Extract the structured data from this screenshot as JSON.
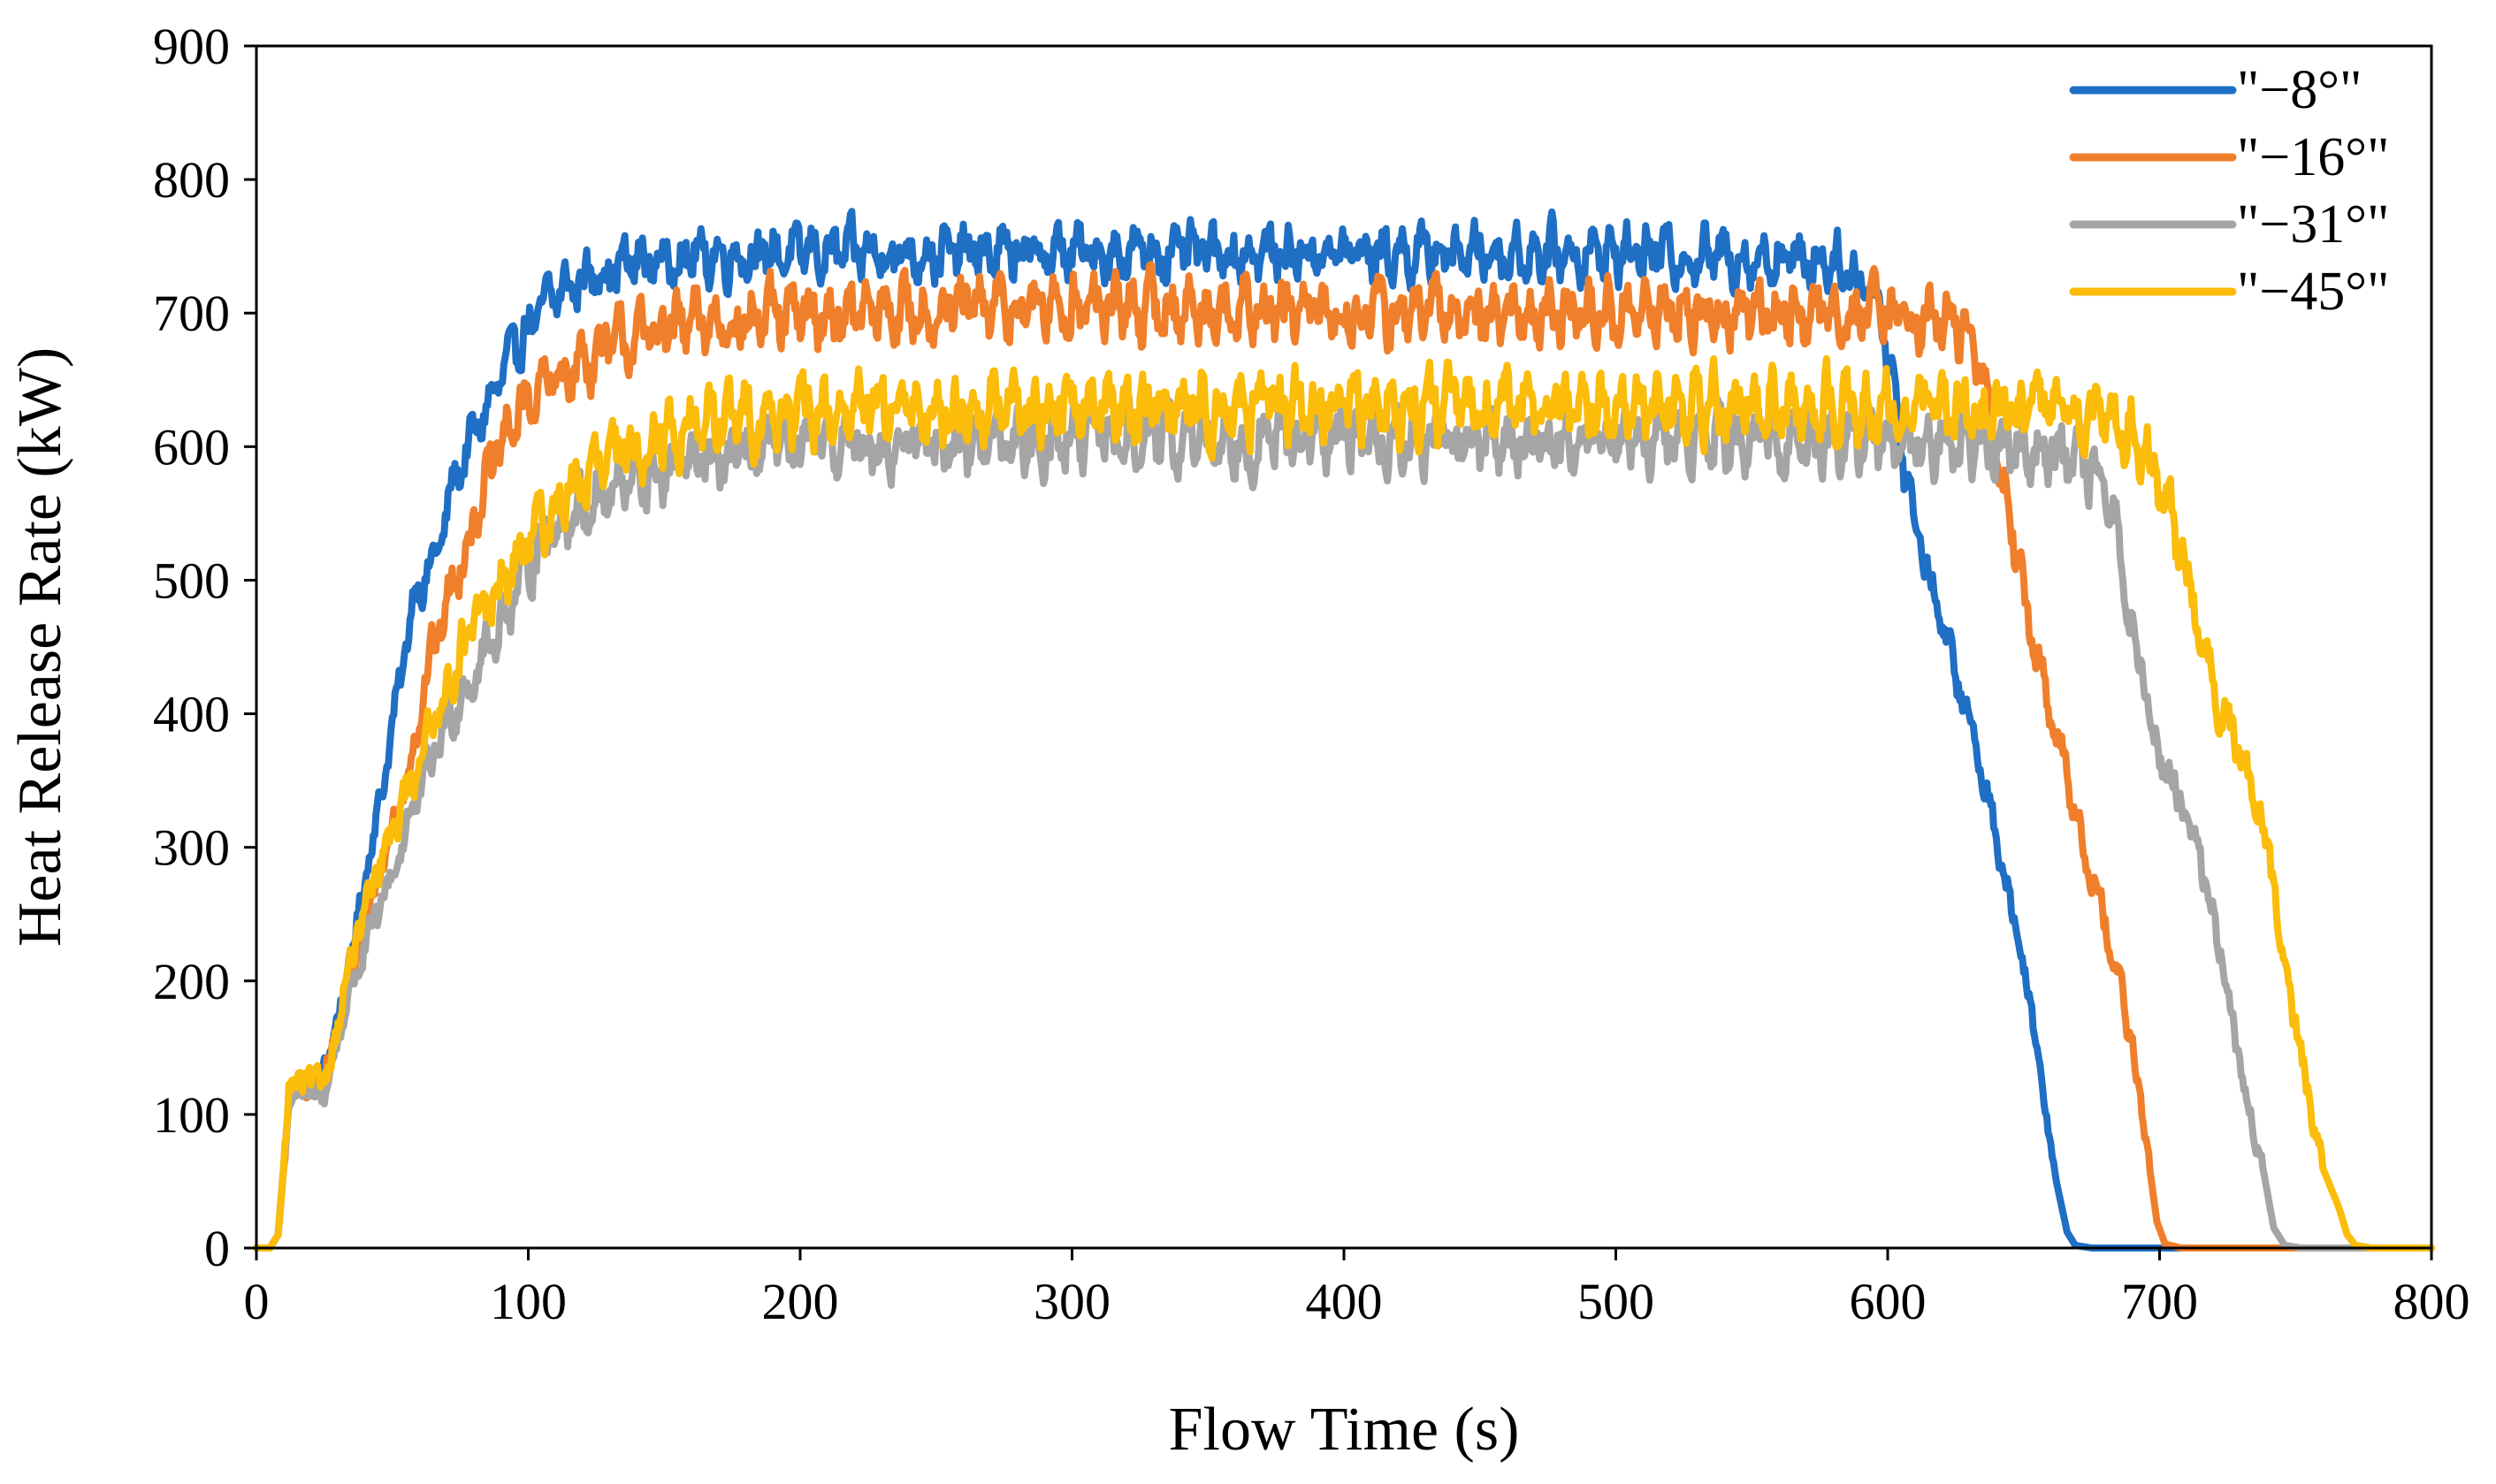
{
  "chart_data": {
    "type": "line",
    "title": "",
    "xlabel": "Flow Time (s)",
    "ylabel": "Heat Release Rate (kW)",
    "xlim": [
      0,
      800
    ],
    "ylim": [
      0,
      900
    ],
    "xticks": [
      0,
      100,
      200,
      300,
      400,
      500,
      600,
      700,
      800
    ],
    "yticks": [
      0,
      100,
      200,
      300,
      400,
      500,
      600,
      700,
      800,
      900
    ],
    "grid": false,
    "legend_position": "top-right",
    "series": [
      {
        "name": "\"−8°\"",
        "color": "#1F6FC5",
        "plateau": 745,
        "noise_amp": 24,
        "points": [
          [
            0,
            0
          ],
          [
            5,
            0
          ],
          [
            8,
            10
          ],
          [
            10,
            60
          ],
          [
            12,
            110
          ],
          [
            15,
            125
          ],
          [
            20,
            120
          ],
          [
            24,
            130
          ],
          [
            28,
            155
          ],
          [
            32,
            190
          ],
          [
            36,
            230
          ],
          [
            40,
            280
          ],
          [
            45,
            330
          ],
          [
            50,
            390
          ],
          [
            55,
            450
          ],
          [
            58,
            490
          ],
          [
            63,
            505
          ],
          [
            68,
            530
          ],
          [
            72,
            570
          ],
          [
            78,
            600
          ],
          [
            85,
            630
          ],
          [
            92,
            660
          ],
          [
            100,
            690
          ],
          [
            108,
            710
          ],
          [
            115,
            720
          ],
          [
            125,
            730
          ],
          [
            140,
            738
          ],
          [
            160,
            742
          ],
          [
            200,
            745
          ],
          [
            300,
            745
          ],
          [
            400,
            745
          ],
          [
            500,
            745
          ],
          [
            580,
            740
          ],
          [
            596,
            715
          ],
          [
            603,
            640
          ],
          [
            606,
            585
          ],
          [
            610,
            545
          ],
          [
            616,
            500
          ],
          [
            622,
            450
          ],
          [
            628,
            410
          ],
          [
            634,
            360
          ],
          [
            640,
            310
          ],
          [
            646,
            250
          ],
          [
            652,
            190
          ],
          [
            657,
            120
          ],
          [
            662,
            50
          ],
          [
            666,
            12
          ],
          [
            669,
            2
          ],
          [
            675,
            0
          ],
          [
            800,
            0
          ]
        ]
      },
      {
        "name": "\"−16°\"",
        "color": "#F07F2B",
        "plateau": 700,
        "noise_amp": 28,
        "points": [
          [
            0,
            0
          ],
          [
            5,
            0
          ],
          [
            8,
            10
          ],
          [
            10,
            60
          ],
          [
            12,
            110
          ],
          [
            15,
            122
          ],
          [
            20,
            118
          ],
          [
            24,
            128
          ],
          [
            30,
            160
          ],
          [
            36,
            210
          ],
          [
            42,
            260
          ],
          [
            48,
            300
          ],
          [
            54,
            340
          ],
          [
            60,
            400
          ],
          [
            65,
            450
          ],
          [
            70,
            480
          ],
          [
            76,
            520
          ],
          [
            82,
            560
          ],
          [
            88,
            590
          ],
          [
            95,
            620
          ],
          [
            102,
            640
          ],
          [
            110,
            650
          ],
          [
            120,
            665
          ],
          [
            135,
            680
          ],
          [
            155,
            690
          ],
          [
            180,
            695
          ],
          [
            220,
            700
          ],
          [
            300,
            705
          ],
          [
            400,
            700
          ],
          [
            500,
            700
          ],
          [
            600,
            700
          ],
          [
            628,
            690
          ],
          [
            636,
            640
          ],
          [
            642,
            580
          ],
          [
            648,
            510
          ],
          [
            654,
            450
          ],
          [
            660,
            400
          ],
          [
            666,
            350
          ],
          [
            672,
            300
          ],
          [
            678,
            260
          ],
          [
            684,
            210
          ],
          [
            690,
            150
          ],
          [
            695,
            80
          ],
          [
            699,
            20
          ],
          [
            702,
            3
          ],
          [
            708,
            0
          ],
          [
            800,
            0
          ]
        ]
      },
      {
        "name": "\"−31°\"",
        "color": "#A5A5A5",
        "plateau": 605,
        "noise_amp": 28,
        "points": [
          [
            0,
            0
          ],
          [
            5,
            0
          ],
          [
            8,
            10
          ],
          [
            10,
            60
          ],
          [
            12,
            110
          ],
          [
            15,
            118
          ],
          [
            20,
            112
          ],
          [
            26,
            120
          ],
          [
            32,
            175
          ],
          [
            38,
            215
          ],
          [
            44,
            245
          ],
          [
            50,
            280
          ],
          [
            56,
            320
          ],
          [
            62,
            350
          ],
          [
            68,
            385
          ],
          [
            74,
            410
          ],
          [
            80,
            430
          ],
          [
            88,
            460
          ],
          [
            95,
            490
          ],
          [
            102,
            520
          ],
          [
            110,
            540
          ],
          [
            120,
            555
          ],
          [
            135,
            570
          ],
          [
            150,
            580
          ],
          [
            170,
            590
          ],
          [
            200,
            600
          ],
          [
            300,
            605
          ],
          [
            400,
            605
          ],
          [
            500,
            605
          ],
          [
            600,
            605
          ],
          [
            660,
            600
          ],
          [
            675,
            580
          ],
          [
            684,
            540
          ],
          [
            690,
            470
          ],
          [
            696,
            400
          ],
          [
            702,
            360
          ],
          [
            708,
            330
          ],
          [
            714,
            300
          ],
          [
            720,
            250
          ],
          [
            726,
            180
          ],
          [
            732,
            110
          ],
          [
            738,
            60
          ],
          [
            742,
            15
          ],
          [
            746,
            2
          ],
          [
            752,
            0
          ],
          [
            800,
            0
          ]
        ]
      },
      {
        "name": "\"−45°\"",
        "color": "#FBBC0A",
        "plateau": 630,
        "noise_amp": 30,
        "points": [
          [
            0,
            0
          ],
          [
            5,
            0
          ],
          [
            8,
            10
          ],
          [
            10,
            60
          ],
          [
            12,
            115
          ],
          [
            15,
            125
          ],
          [
            20,
            122
          ],
          [
            26,
            130
          ],
          [
            32,
            190
          ],
          [
            38,
            240
          ],
          [
            44,
            275
          ],
          [
            50,
            310
          ],
          [
            56,
            345
          ],
          [
            62,
            380
          ],
          [
            68,
            410
          ],
          [
            74,
            440
          ],
          [
            80,
            465
          ],
          [
            88,
            490
          ],
          [
            95,
            510
          ],
          [
            102,
            535
          ],
          [
            110,
            555
          ],
          [
            120,
            575
          ],
          [
            135,
            595
          ],
          [
            150,
            610
          ],
          [
            170,
            620
          ],
          [
            200,
            625
          ],
          [
            300,
            630
          ],
          [
            400,
            630
          ],
          [
            500,
            630
          ],
          [
            600,
            630
          ],
          [
            670,
            625
          ],
          [
            692,
            610
          ],
          [
            700,
            570
          ],
          [
            706,
            530
          ],
          [
            712,
            490
          ],
          [
            718,
            430
          ],
          [
            724,
            400
          ],
          [
            730,
            370
          ],
          [
            736,
            330
          ],
          [
            742,
            270
          ],
          [
            748,
            190
          ],
          [
            754,
            120
          ],
          [
            760,
            60
          ],
          [
            766,
            30
          ],
          [
            769,
            10
          ],
          [
            772,
            2
          ],
          [
            778,
            0
          ],
          [
            800,
            0
          ]
        ]
      }
    ]
  }
}
